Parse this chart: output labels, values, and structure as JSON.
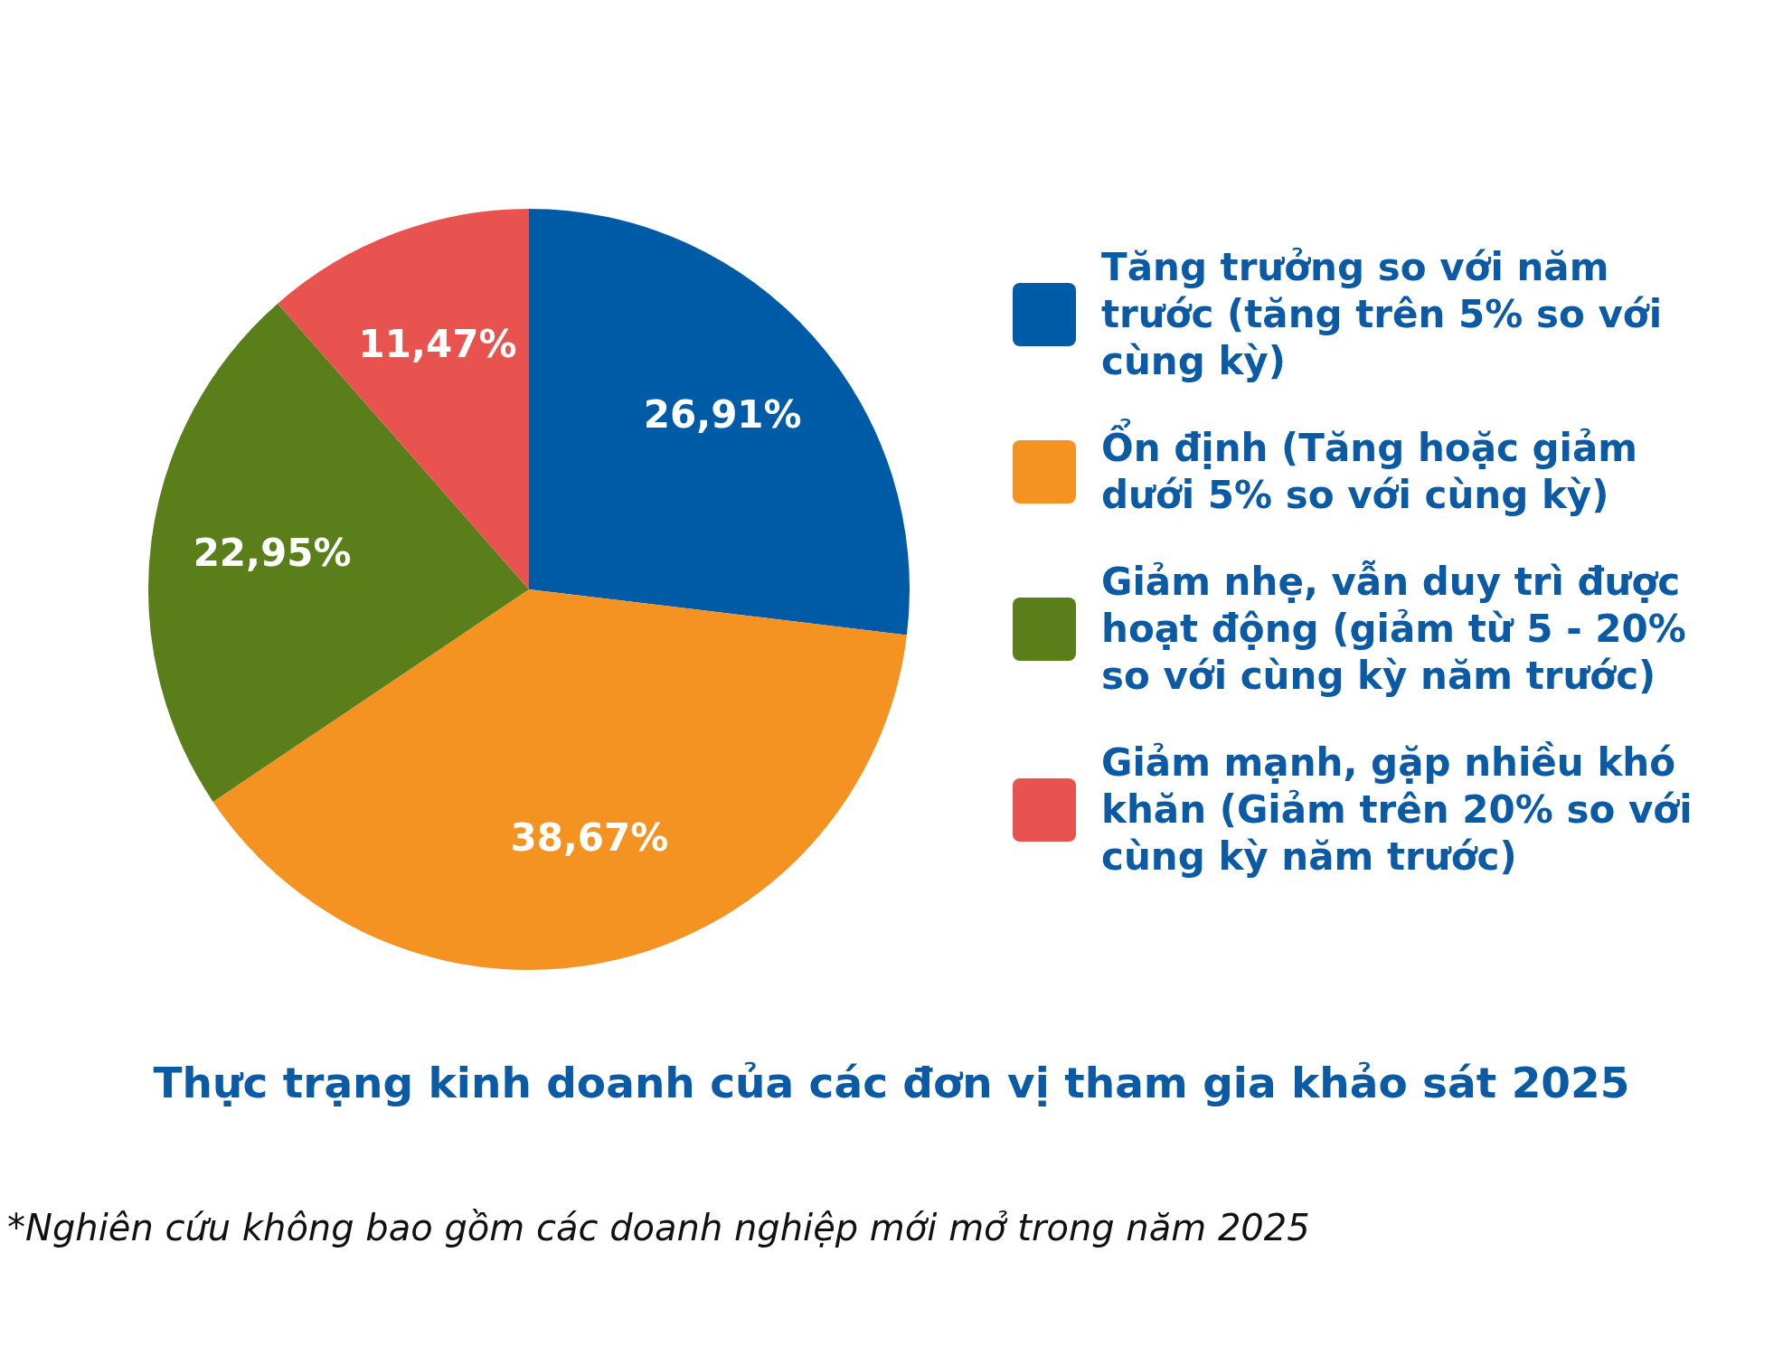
{
  "chart_data": {
    "type": "pie",
    "title": "Thực trạng kinh doanh của các đơn vị tham gia khảo sát 2025",
    "categories": [
      "Tăng trưởng so với năm trước (tăng trên 5% so với cùng kỳ)",
      "Ổn định (Tăng hoặc giảm dưới 5% so với cùng kỳ)",
      "Giảm nhẹ, vẫn duy trì được hoạt động (giảm từ 5 - 20% so với cùng kỳ năm trước)",
      "Giảm mạnh, gặp nhiều khó khăn (Giảm trên 20% so với cùng kỳ năm trước)"
    ],
    "values": [
      26.91,
      38.67,
      22.95,
      11.47
    ],
    "colors": [
      "#005ba6",
      "#f59322",
      "#5a7f1a",
      "#e9534f"
    ],
    "value_labels": [
      "26,91%",
      "38,67%",
      "22,95%",
      "11,47%"
    ],
    "legend": "right",
    "annotations": [
      "*Nghiên cứu không bao gồm các doanh nghiệp mới mở trong năm 2025"
    ]
  }
}
